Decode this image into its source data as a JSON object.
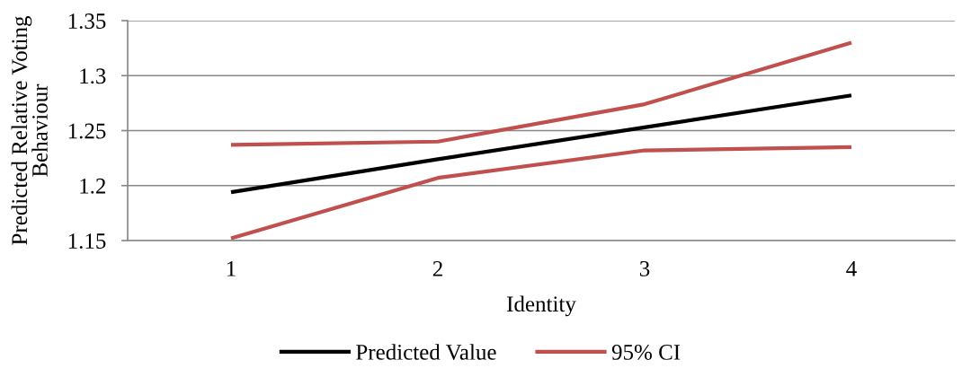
{
  "chart_data": {
    "type": "line",
    "xlabel": "Identity",
    "ylabel": "Predicted Relative Voting\nBehaviour",
    "categories": [
      "1",
      "2",
      "3",
      "4"
    ],
    "series": [
      {
        "name": "Predicted Value",
        "color": "#000000",
        "values": [
          1.194,
          1.224,
          1.253,
          1.282
        ]
      },
      {
        "name": "95% CI",
        "color": "#c0504d",
        "values": [
          1.237,
          1.24,
          1.274,
          1.33
        ]
      },
      {
        "color": "#c0504d",
        "values": [
          1.152,
          1.207,
          1.232,
          1.235
        ]
      }
    ],
    "ylim": [
      1.15,
      1.35
    ],
    "yticks": [
      1.15,
      1.2,
      1.25,
      1.3,
      1.35
    ],
    "grid": "y",
    "legend": "bottom"
  }
}
